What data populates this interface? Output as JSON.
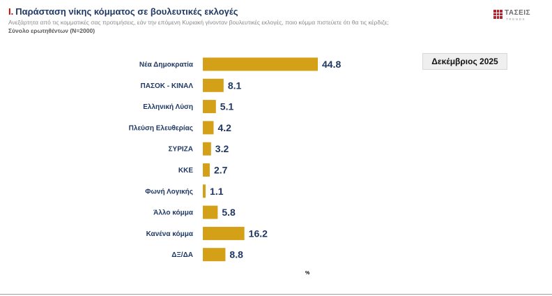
{
  "header": {
    "title_number": "Ι.",
    "title": "Παράσταση νίκης κόμματος σε βουλευτικές εκλογές",
    "subtitle": "Ανεξάρτητα από τις κομματικές σας προτιμήσεις, εάν την επόμενη Κυριακή γίνονταν βουλευτικές εκλογές, ποιο κόμμα πιστεύετε ότι θα τις κέρδιζε;",
    "base": "Σύνολο ερωτηθέντων (Ν=2000)"
  },
  "logo": {
    "name": "ΤΑΣΕΙΣ",
    "sub": "TRENDS",
    "color": "#b5222b"
  },
  "date_box": "Δεκέμβριος 2025",
  "chart_data": {
    "type": "bar",
    "orientation": "horizontal",
    "categories": [
      "Νέα Δημοκρατία",
      "ΠΑΣΟΚ - ΚΙΝΑΛ",
      "Ελληνική Λύση",
      "Πλεύση Ελευθερίας",
      "ΣΥΡΙΖΑ",
      "ΚΚΕ",
      "Φωνή Λογικής",
      "Άλλο κόμμα",
      "Κανένα κόμμα",
      "ΔΞ/ΔΑ"
    ],
    "values": [
      44.8,
      8.1,
      5.1,
      4.2,
      3.2,
      2.7,
      1.1,
      5.8,
      16.2,
      8.8
    ],
    "value_labels": [
      "44.8",
      "8.1",
      "5.1",
      "4.2",
      "3.2",
      "2.7",
      "1.1",
      "5.8",
      "16.2",
      "8.8"
    ],
    "unit": "%",
    "bar_color": "#d4a017",
    "label_color": "#1f3864",
    "xlim": [
      0,
      44.8
    ],
    "grid": false,
    "legend": "none"
  }
}
